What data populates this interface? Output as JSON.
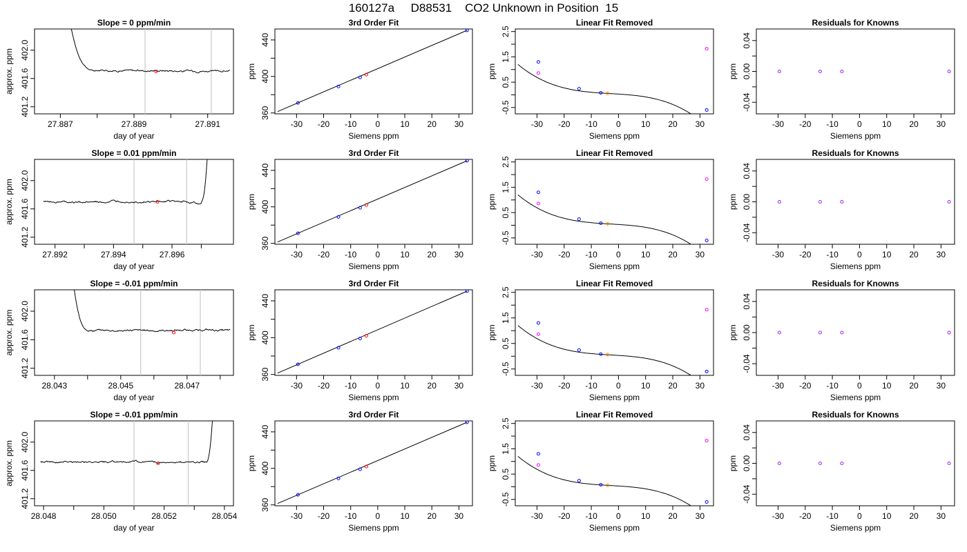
{
  "page_title": "160127a     D88531    CO2 Unknown in Position  15",
  "colors": {
    "line": "#000000",
    "known": "#0000ff",
    "unknown_red": "#ff0000",
    "unknown_orange": "#ff8c00",
    "magenta": "#ff00ff",
    "purple": "#a020f0",
    "marker_line": "#c8c8c8"
  },
  "chart_data": [
    {
      "row": 1,
      "panel": "timeseries",
      "type": "line",
      "title": "Slope =  0  ppm/min",
      "xlabel": "day of year",
      "ylabel": "approx. ppm",
      "xlim": [
        27.8863,
        27.8917
      ],
      "ylim": [
        401.1,
        402.3
      ],
      "xticks": [
        27.887,
        27.889,
        27.891
      ],
      "xtick_labels": [
        "27.887",
        "27.889",
        "27.891"
      ],
      "minor_xticks": [
        27.888,
        27.89
      ],
      "yticks": [
        401.2,
        401.6,
        402.0
      ],
      "ytick_labels": [
        "401.2",
        "401.6",
        "402.0"
      ],
      "vlines": [
        27.8893,
        27.8911
      ],
      "marker": {
        "x": 27.8896,
        "y": 401.7
      },
      "trace": {
        "start_x": 27.8873,
        "end_x": 27.8916,
        "start_y": 402.3,
        "settle_x": 27.888,
        "level": 401.71,
        "settle_dir": "down"
      }
    },
    {
      "row": 1,
      "panel": "fit",
      "type": "scatter",
      "title": "3rd Order Fit",
      "xlabel": "Siemens ppm",
      "ylabel": "ppm",
      "xlim": [
        -38,
        35
      ],
      "ylim": [
        359,
        452
      ],
      "xticks": [
        -30,
        -20,
        -10,
        0,
        10,
        20,
        30
      ],
      "xtick_labels": [
        "-30",
        "-20",
        "-10",
        "0",
        "10",
        "20",
        "30"
      ],
      "yticks": [
        360,
        400,
        440
      ],
      "ytick_labels": [
        "360",
        "400",
        "440"
      ],
      "minor_yticks": [
        380,
        420
      ],
      "line": [
        [
          -37,
          361.5
        ],
        [
          33,
          450.5
        ]
      ],
      "known_points": [
        [
          -29.5,
          371
        ],
        [
          -14.5,
          389
        ],
        [
          -6.5,
          399
        ],
        [
          33,
          450.5
        ]
      ],
      "unknown_points": [
        [
          -4.2,
          402
        ]
      ]
    },
    {
      "row": 1,
      "panel": "linear_removed",
      "type": "scatter",
      "title": "Linear Fit Removed",
      "xlabel": "Siemens ppm",
      "ylabel": "ppm",
      "xlim": [
        -38,
        35
      ],
      "ylim": [
        -0.75,
        2.6
      ],
      "xticks": [
        -30,
        -20,
        -10,
        0,
        10,
        20,
        30
      ],
      "xtick_labels": [
        "-30",
        "-20",
        "-10",
        "0",
        "10",
        "20",
        "30"
      ],
      "yticks": [
        -0.5,
        0.5,
        1.5,
        2.5
      ],
      "ytick_labels": [
        "-0.5",
        "0.5",
        "1.5",
        "2.5"
      ],
      "minor_yticks": [
        0,
        1,
        2
      ],
      "curve": {
        "x0": -37,
        "x1": 33,
        "coef": [
          0.031,
          -0.0068,
          -0.00021,
          -2.38e-05
        ]
      },
      "known_points": [
        [
          -29.5,
          1.3
        ],
        [
          -14.5,
          0.24
        ],
        [
          -6.5,
          0.08
        ],
        [
          32.5,
          -0.6
        ]
      ],
      "unknown_points": [
        [
          -4.0,
          0.06
        ]
      ],
      "magenta_points": [
        [
          -29.5,
          0.86
        ],
        [
          32.5,
          1.82
        ]
      ]
    },
    {
      "row": 1,
      "panel": "residuals",
      "type": "scatter",
      "title": "Residuals for Knowns",
      "xlabel": "Siemens ppm",
      "ylabel": "ppm",
      "xlim": [
        -38,
        35
      ],
      "ylim": [
        -0.055,
        0.055
      ],
      "xticks": [
        -30,
        -20,
        -10,
        0,
        10,
        20,
        30
      ],
      "xtick_labels": [
        "-30",
        "-20",
        "-10",
        "0",
        "10",
        "20",
        "30"
      ],
      "yticks": [
        -0.04,
        0.0,
        0.04
      ],
      "ytick_labels": [
        "-0.04",
        "0.00",
        "0.04"
      ],
      "minor_yticks": [
        -0.02,
        0.02
      ],
      "points": [
        [
          -29.5,
          0
        ],
        [
          -14.5,
          0
        ],
        [
          -6.5,
          0
        ],
        [
          33,
          0
        ]
      ]
    },
    {
      "row": 2,
      "panel": "timeseries",
      "type": "line",
      "title": "Slope =  0.01  ppm/min",
      "xlabel": "day of year",
      "ylabel": "approx. ppm",
      "xlim": [
        27.8913,
        27.8981
      ],
      "ylim": [
        401.1,
        402.3
      ],
      "xticks": [
        27.892,
        27.894,
        27.896
      ],
      "xtick_labels": [
        "27.892",
        "27.894",
        "27.896"
      ],
      "minor_xticks": [
        27.893,
        27.895,
        27.897
      ],
      "yticks": [
        401.2,
        401.6,
        402.0
      ],
      "ytick_labels": [
        "401.2",
        "401.6",
        "402.0"
      ],
      "vlines": [
        27.8947,
        27.8965
      ],
      "marker": {
        "x": 27.8955,
        "y": 401.7
      },
      "trace": {
        "start_x": 27.8916,
        "end_x": 27.8972,
        "end_y": 402.3,
        "settle_x": 27.897,
        "level": 401.7,
        "settle_dir": "up_end"
      }
    },
    {
      "row": 2,
      "panel": "fit",
      "type": "scatter",
      "title": "3rd Order Fit",
      "xlabel": "Siemens ppm",
      "ylabel": "ppm",
      "xlim": [
        -38,
        35
      ],
      "ylim": [
        359,
        452
      ],
      "xticks": [
        -30,
        -20,
        -10,
        0,
        10,
        20,
        30
      ],
      "xtick_labels": [
        "-30",
        "-20",
        "-10",
        "0",
        "10",
        "20",
        "30"
      ],
      "yticks": [
        360,
        400,
        440
      ],
      "ytick_labels": [
        "360",
        "400",
        "440"
      ],
      "minor_yticks": [
        380,
        420
      ],
      "line": [
        [
          -37,
          361.5
        ],
        [
          33,
          450.5
        ]
      ],
      "known_points": [
        [
          -29.5,
          371
        ],
        [
          -14.5,
          389
        ],
        [
          -6.5,
          399
        ],
        [
          33,
          450.5
        ]
      ],
      "unknown_points": [
        [
          -4.2,
          402
        ]
      ]
    },
    {
      "row": 2,
      "panel": "linear_removed",
      "type": "scatter",
      "title": "Linear Fit Removed",
      "xlabel": "Siemens ppm",
      "ylabel": "ppm",
      "xlim": [
        -38,
        35
      ],
      "ylim": [
        -0.75,
        2.6
      ],
      "xticks": [
        -30,
        -20,
        -10,
        0,
        10,
        20,
        30
      ],
      "xtick_labels": [
        "-30",
        "-20",
        "-10",
        "0",
        "10",
        "20",
        "30"
      ],
      "yticks": [
        -0.5,
        0.5,
        1.5,
        2.5
      ],
      "ytick_labels": [
        "-0.5",
        "0.5",
        "1.5",
        "2.5"
      ],
      "minor_yticks": [
        0,
        1,
        2
      ],
      "curve": {
        "x0": -37,
        "x1": 33,
        "coef": [
          0.031,
          -0.0068,
          -0.00021,
          -2.38e-05
        ]
      },
      "known_points": [
        [
          -29.5,
          1.3
        ],
        [
          -14.5,
          0.24
        ],
        [
          -6.5,
          0.08
        ],
        [
          32.5,
          -0.6
        ]
      ],
      "unknown_points": [
        [
          -4.0,
          0.06
        ]
      ],
      "magenta_points": [
        [
          -29.5,
          0.86
        ],
        [
          32.5,
          1.82
        ]
      ]
    },
    {
      "row": 2,
      "panel": "residuals",
      "type": "scatter",
      "title": "Residuals for Knowns",
      "xlabel": "Siemens ppm",
      "ylabel": "ppm",
      "xlim": [
        -38,
        35
      ],
      "ylim": [
        -0.055,
        0.055
      ],
      "xticks": [
        -30,
        -20,
        -10,
        0,
        10,
        20,
        30
      ],
      "xtick_labels": [
        "-30",
        "-20",
        "-10",
        "0",
        "10",
        "20",
        "30"
      ],
      "yticks": [
        -0.04,
        0.0,
        0.04
      ],
      "ytick_labels": [
        "-0.04",
        "0.00",
        "0.04"
      ],
      "minor_yticks": [
        -0.02,
        0.02
      ],
      "points": [
        [
          -29.5,
          0
        ],
        [
          -14.5,
          0
        ],
        [
          -6.5,
          0
        ],
        [
          33,
          0
        ]
      ]
    },
    {
      "row": 3,
      "panel": "timeseries",
      "type": "line",
      "title": "Slope =  -0.01  ppm/min",
      "xlabel": "day of year",
      "ylabel": "approx. ppm",
      "xlim": [
        28.0424,
        28.0484
      ],
      "ylim": [
        401.1,
        402.3
      ],
      "xticks": [
        28.043,
        28.045,
        28.047
      ],
      "xtick_labels": [
        "28.043",
        "28.045",
        "28.047"
      ],
      "minor_xticks": [
        28.044,
        28.046,
        28.048
      ],
      "yticks": [
        401.2,
        401.6,
        402.0
      ],
      "ytick_labels": [
        "401.2",
        "401.6",
        "402.0"
      ],
      "vlines": [
        28.0456,
        28.0474
      ],
      "marker": {
        "x": 28.0466,
        "y": 401.7
      },
      "trace": {
        "start_x": 28.0436,
        "end_x": 28.0483,
        "start_y": 402.3,
        "settle_x": 28.0441,
        "level": 401.73,
        "settle_dir": "down"
      }
    },
    {
      "row": 3,
      "panel": "fit",
      "type": "scatter",
      "title": "3rd Order Fit",
      "xlabel": "Siemens ppm",
      "ylabel": "ppm",
      "xlim": [
        -38,
        35
      ],
      "ylim": [
        359,
        452
      ],
      "xticks": [
        -30,
        -20,
        -10,
        0,
        10,
        20,
        30
      ],
      "xtick_labels": [
        "-30",
        "-20",
        "-10",
        "0",
        "10",
        "20",
        "30"
      ],
      "yticks": [
        360,
        400,
        440
      ],
      "ytick_labels": [
        "360",
        "400",
        "440"
      ],
      "minor_yticks": [
        380,
        420
      ],
      "line": [
        [
          -37,
          361.5
        ],
        [
          33,
          450.5
        ]
      ],
      "known_points": [
        [
          -29.5,
          371
        ],
        [
          -14.5,
          389
        ],
        [
          -6.5,
          399
        ],
        [
          33,
          450.5
        ]
      ],
      "unknown_points": [
        [
          -4.2,
          402
        ]
      ]
    },
    {
      "row": 3,
      "panel": "linear_removed",
      "type": "scatter",
      "title": "Linear Fit Removed",
      "xlabel": "Siemens ppm",
      "ylabel": "ppm",
      "xlim": [
        -38,
        35
      ],
      "ylim": [
        -0.75,
        2.6
      ],
      "xticks": [
        -30,
        -20,
        -10,
        0,
        10,
        20,
        30
      ],
      "xtick_labels": [
        "-30",
        "-20",
        "-10",
        "0",
        "10",
        "20",
        "30"
      ],
      "yticks": [
        -0.5,
        0.5,
        1.5,
        2.5
      ],
      "ytick_labels": [
        "-0.5",
        "0.5",
        "1.5",
        "2.5"
      ],
      "minor_yticks": [
        0,
        1,
        2
      ],
      "curve": {
        "x0": -37,
        "x1": 33,
        "coef": [
          0.031,
          -0.0068,
          -0.00021,
          -2.38e-05
        ]
      },
      "known_points": [
        [
          -29.5,
          1.3
        ],
        [
          -14.5,
          0.24
        ],
        [
          -6.5,
          0.08
        ],
        [
          32.5,
          -0.6
        ]
      ],
      "unknown_points": [
        [
          -4.0,
          0.06
        ]
      ],
      "magenta_points": [
        [
          -29.5,
          0.86
        ],
        [
          32.5,
          1.82
        ]
      ]
    },
    {
      "row": 3,
      "panel": "residuals",
      "type": "scatter",
      "title": "Residuals for Knowns",
      "xlabel": "Siemens ppm",
      "ylabel": "ppm",
      "xlim": [
        -38,
        35
      ],
      "ylim": [
        -0.055,
        0.055
      ],
      "xticks": [
        -30,
        -20,
        -10,
        0,
        10,
        20,
        30
      ],
      "xtick_labels": [
        "-30",
        "-20",
        "-10",
        "0",
        "10",
        "20",
        "30"
      ],
      "yticks": [
        -0.04,
        0.0,
        0.04
      ],
      "ytick_labels": [
        "-0.04",
        "0.00",
        "0.04"
      ],
      "minor_yticks": [
        -0.02,
        0.02
      ],
      "points": [
        [
          -29.5,
          0
        ],
        [
          -14.5,
          0
        ],
        [
          -6.5,
          0
        ],
        [
          33,
          0
        ]
      ]
    },
    {
      "row": 4,
      "panel": "timeseries",
      "type": "line",
      "title": "Slope =  -0.01  ppm/min",
      "xlabel": "day of year",
      "ylabel": "approx. ppm",
      "xlim": [
        28.0477,
        28.0543
      ],
      "ylim": [
        401.1,
        402.3
      ],
      "xticks": [
        28.048,
        28.05,
        28.052,
        28.054
      ],
      "xtick_labels": [
        "28.048",
        "28.050",
        "28.052",
        "28.054"
      ],
      "minor_xticks": [
        28.049,
        28.051,
        28.053
      ],
      "yticks": [
        401.2,
        401.6,
        402.0
      ],
      "ytick_labels": [
        "401.2",
        "401.6",
        "402.0"
      ],
      "vlines": [
        28.051,
        28.0528
      ],
      "marker": {
        "x": 28.0518,
        "y": 401.7
      },
      "trace": {
        "start_x": 28.0479,
        "end_x": 28.0536,
        "end_y": 402.3,
        "settle_x": 28.0534,
        "level": 401.72,
        "settle_dir": "up_end"
      }
    },
    {
      "row": 4,
      "panel": "fit",
      "type": "scatter",
      "title": "3rd Order Fit",
      "xlabel": "Siemens ppm",
      "ylabel": "ppm",
      "xlim": [
        -38,
        35
      ],
      "ylim": [
        359,
        452
      ],
      "xticks": [
        -30,
        -20,
        -10,
        0,
        10,
        20,
        30
      ],
      "xtick_labels": [
        "-30",
        "-20",
        "-10",
        "0",
        "10",
        "20",
        "30"
      ],
      "yticks": [
        360,
        400,
        440
      ],
      "ytick_labels": [
        "360",
        "400",
        "440"
      ],
      "minor_yticks": [
        380,
        420
      ],
      "line": [
        [
          -37,
          361.5
        ],
        [
          33,
          450.5
        ]
      ],
      "known_points": [
        [
          -29.5,
          371
        ],
        [
          -14.5,
          389
        ],
        [
          -6.5,
          399
        ],
        [
          33,
          450.5
        ]
      ],
      "unknown_points": [
        [
          -4.2,
          402
        ]
      ]
    },
    {
      "row": 4,
      "panel": "linear_removed",
      "type": "scatter",
      "title": "Linear Fit Removed",
      "xlabel": "Siemens ppm",
      "ylabel": "ppm",
      "xlim": [
        -38,
        35
      ],
      "ylim": [
        -0.75,
        2.6
      ],
      "xticks": [
        -30,
        -20,
        -10,
        0,
        10,
        20,
        30
      ],
      "xtick_labels": [
        "-30",
        "-20",
        "-10",
        "0",
        "10",
        "20",
        "30"
      ],
      "yticks": [
        -0.5,
        0.5,
        1.5,
        2.5
      ],
      "ytick_labels": [
        "-0.5",
        "0.5",
        "1.5",
        "2.5"
      ],
      "minor_yticks": [
        0,
        1,
        2
      ],
      "curve": {
        "x0": -37,
        "x1": 33,
        "coef": [
          0.031,
          -0.0068,
          -0.00021,
          -2.38e-05
        ]
      },
      "known_points": [
        [
          -29.5,
          1.3
        ],
        [
          -14.5,
          0.24
        ],
        [
          -6.5,
          0.08
        ],
        [
          32.5,
          -0.6
        ]
      ],
      "unknown_points": [
        [
          -4.0,
          0.06
        ]
      ],
      "magenta_points": [
        [
          -29.5,
          0.86
        ],
        [
          32.5,
          1.82
        ]
      ]
    },
    {
      "row": 4,
      "panel": "residuals",
      "type": "scatter",
      "title": "Residuals for Knowns",
      "xlabel": "Siemens ppm",
      "ylabel": "ppm",
      "xlim": [
        -38,
        35
      ],
      "ylim": [
        -0.055,
        0.055
      ],
      "xticks": [
        -30,
        -20,
        -10,
        0,
        10,
        20,
        30
      ],
      "xtick_labels": [
        "-30",
        "-20",
        "-10",
        "0",
        "10",
        "20",
        "30"
      ],
      "yticks": [
        -0.04,
        0.0,
        0.04
      ],
      "ytick_labels": [
        "-0.04",
        "0.00",
        "0.04"
      ],
      "minor_yticks": [
        -0.02,
        0.02
      ],
      "points": [
        [
          -29.5,
          0
        ],
        [
          -14.5,
          0
        ],
        [
          -6.5,
          0
        ],
        [
          33,
          0
        ]
      ]
    }
  ]
}
